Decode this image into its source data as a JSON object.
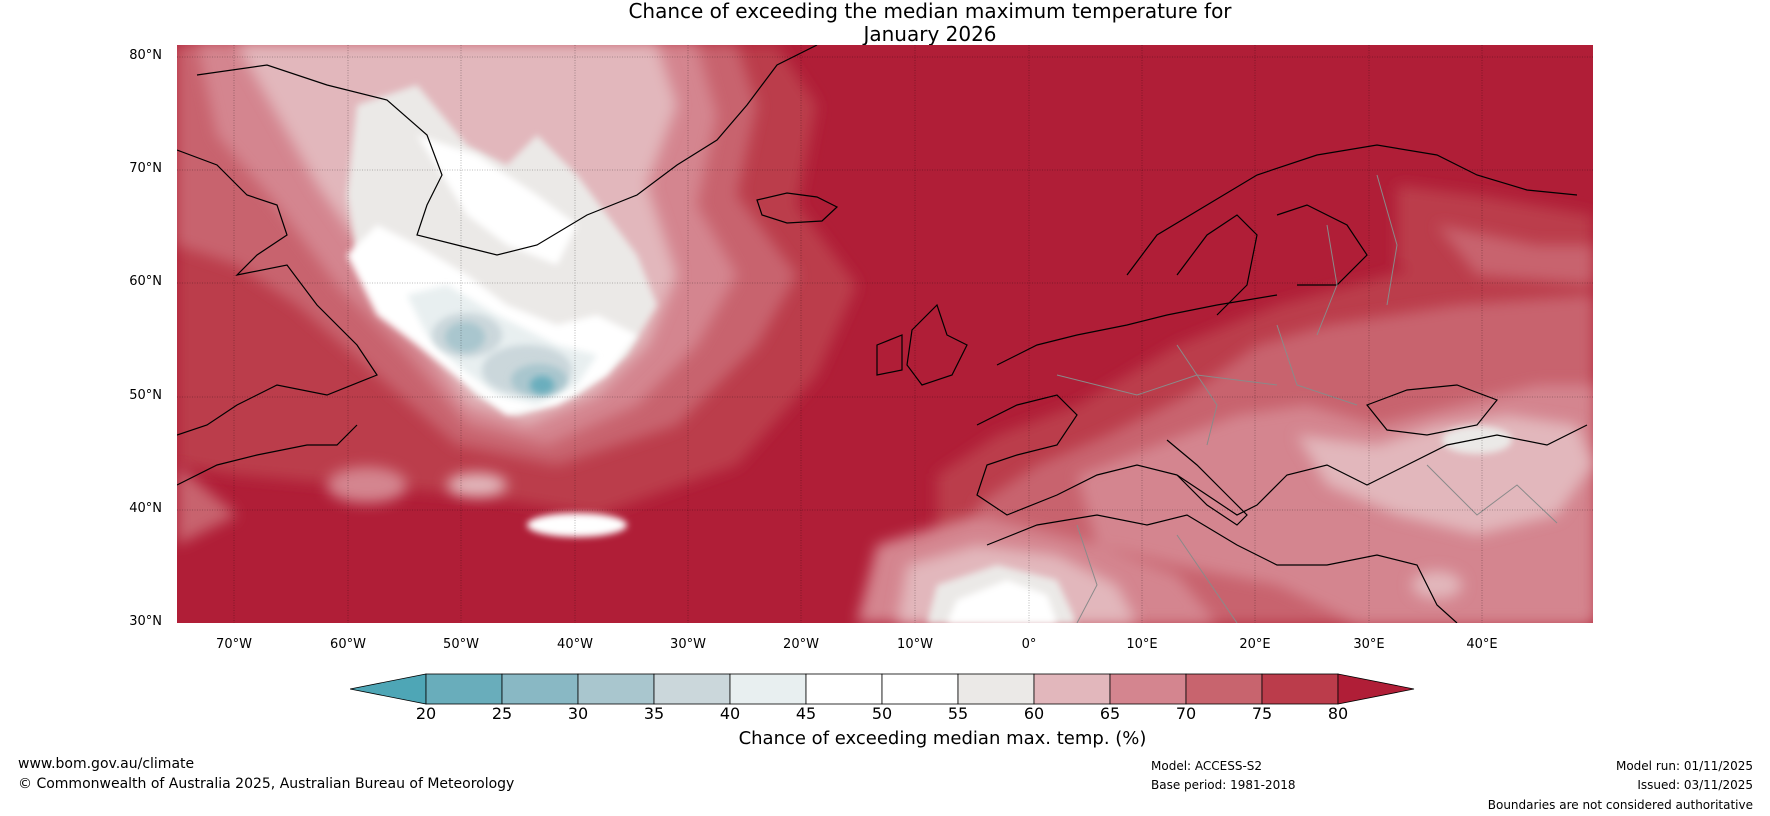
{
  "title": {
    "line1": "Chance of exceeding the median maximum temperature for",
    "line2": "January 2026"
  },
  "map": {
    "latitude_labels": [
      "80°N",
      "70°N",
      "60°N",
      "50°N",
      "40°N",
      "30°N"
    ],
    "longitude_labels": [
      "70°W",
      "60°W",
      "50°W",
      "40°W",
      "30°W",
      "20°W",
      "10°W",
      "0°",
      "10°E",
      "20°E",
      "30°E",
      "40°E"
    ],
    "lon_range": [
      "75°W",
      "50°E"
    ],
    "lat_range": [
      "30°N",
      "81°N"
    ],
    "regions": [
      "Greenland",
      "Iceland",
      "North Atlantic",
      "Scandinavia",
      "British Isles",
      "Europe",
      "Mediterranean",
      "North Africa",
      "Canada"
    ]
  },
  "colorbar": {
    "ticks": [
      "20",
      "25",
      "30",
      "35",
      "40",
      "45",
      "50",
      "55",
      "60",
      "65",
      "70",
      "75",
      "80"
    ],
    "colors": [
      "#4ea6b6",
      "#69adbb",
      "#89b8c4",
      "#a9c6ce",
      "#cbd7db",
      "#e8eff0",
      "#ffffff",
      "#ffffff",
      "#ebe9e7",
      "#e2b7bc",
      "#d4858f",
      "#c8646e",
      "#bb3c4b",
      "#b01e37"
    ],
    "label": "Chance of exceeding median max. temp. (%)"
  },
  "footer": {
    "website": "www.bom.gov.au/climate",
    "copyright": "© Commonwealth of Australia 2025, Australian Bureau of Meteorology",
    "model": "Model: ACCESS-S2",
    "base_period": "Base period: 1981-2018",
    "model_run": "Model run: 01/11/2025",
    "issued": "Issued: 03/11/2025",
    "disclaimer": "Boundaries are not considered authoritative"
  }
}
